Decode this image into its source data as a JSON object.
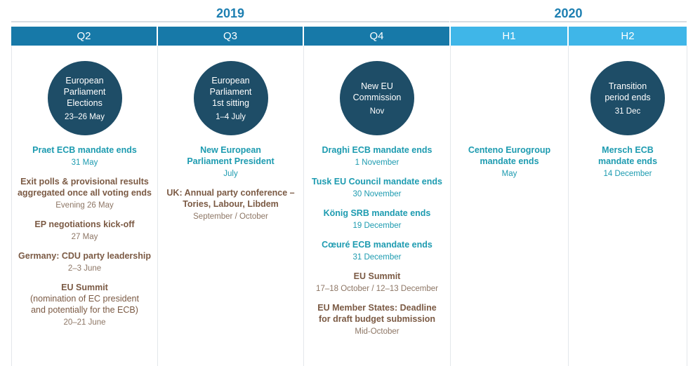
{
  "years": [
    {
      "label": "2019"
    },
    {
      "label": "2020"
    }
  ],
  "colors": {
    "dark_blue": "#1779a8",
    "light_blue": "#3fb6e8",
    "circle": "#1e4d67",
    "teal_text": "#1d9bb0",
    "brown_text": "#7b5a44"
  },
  "periods": [
    {
      "label": "Q2",
      "circle": {
        "title": "European\nParliament\nElections",
        "date": "23–26 May"
      },
      "events": [
        {
          "title": "Praet ECB mandate ends",
          "date": "31 May",
          "style": "teal"
        },
        {
          "title": "Exit polls & provisional results\naggregated once all voting ends",
          "date": "Evening 26 May",
          "style": "brown"
        },
        {
          "title": "EP negotiations kick-off",
          "date": "27 May",
          "style": "brown"
        },
        {
          "title": "Germany: CDU party leadership",
          "date": "2–3 June",
          "style": "brown"
        },
        {
          "title": "EU Summit",
          "subtitle": "(nomination of EC president\nand potentially for the ECB)",
          "date": "20–21 June",
          "style": "brown"
        }
      ]
    },
    {
      "label": "Q3",
      "circle": {
        "title": "European\nParliament\n1st sitting",
        "date": "1–4 July"
      },
      "events": [
        {
          "title": "New European\nParliament President",
          "date": "July",
          "style": "teal"
        },
        {
          "title": "UK: Annual party conference –\nTories, Labour, Libdem",
          "date": "September / October",
          "style": "brown"
        }
      ]
    },
    {
      "label": "Q4",
      "circle": {
        "title": "New EU\nCommission",
        "date": "Nov"
      },
      "events": [
        {
          "title": "Draghi ECB mandate ends",
          "date": "1 November",
          "style": "teal"
        },
        {
          "title": "Tusk EU Council mandate ends",
          "date": "30 November",
          "style": "teal"
        },
        {
          "title": "König SRB mandate ends",
          "date": "19 December",
          "style": "teal"
        },
        {
          "title": "Cœuré ECB mandate ends",
          "date": "31 December",
          "style": "teal"
        },
        {
          "title": "EU Summit",
          "date": "17–18 October / 12–13 December",
          "style": "brown"
        },
        {
          "title": "EU Member States: Deadline\nfor draft budget submission",
          "date": "Mid-October",
          "style": "brown"
        }
      ]
    },
    {
      "label": "H1",
      "events": [
        {
          "title": "Centeno Eurogroup\nmandate ends",
          "date": "May",
          "style": "teal"
        }
      ]
    },
    {
      "label": "H2",
      "circle": {
        "title": "Transition\nperiod ends",
        "date": "31 Dec"
      },
      "events": [
        {
          "title": "Mersch ECB\nmandate ends",
          "date": "14 December",
          "style": "teal"
        }
      ]
    }
  ]
}
